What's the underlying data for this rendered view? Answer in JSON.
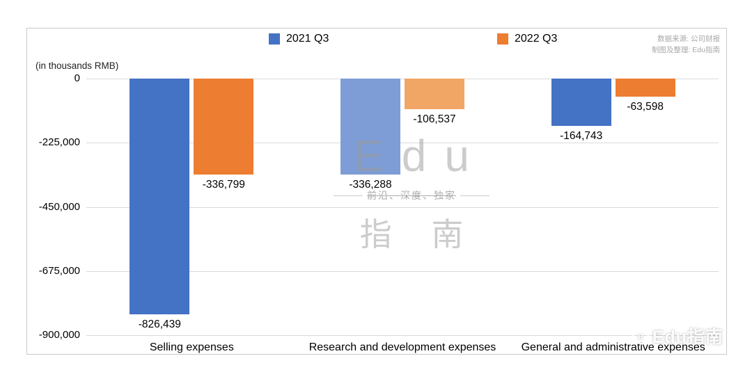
{
  "legend": {
    "items": [
      {
        "label": "2021 Q3",
        "color": "#4472C4"
      },
      {
        "label": "2022 Q3",
        "color": "#ED7D31"
      }
    ]
  },
  "source": {
    "line1": "数据来源: 公司财报",
    "line2": "制图及整理: Edu指南"
  },
  "chart_data": {
    "type": "bar",
    "title": "",
    "unit_label": "(in thousands RMB)",
    "categories": [
      "Selling expenses",
      "Research and development expenses",
      "General and administrative expenses"
    ],
    "series": [
      {
        "name": "2021 Q3",
        "color": "#4472C4",
        "values": [
          -826439,
          -336288,
          -164743
        ],
        "labels": [
          "-826,439",
          "-336,288",
          "-164,743"
        ]
      },
      {
        "name": "2022 Q3",
        "color": "#ED7D31",
        "values": [
          -336799,
          -106537,
          -63598
        ],
        "labels": [
          "-336,799",
          "-106,537",
          "-63,598"
        ]
      }
    ],
    "bar_colors": [
      [
        "#4472C4",
        "#ED7D31"
      ],
      [
        "#7E9DD6",
        "#F2A665"
      ],
      [
        "#4472C4",
        "#ED7D31"
      ]
    ],
    "ylim": [
      -900000,
      0
    ],
    "y_ticks": [
      0,
      -225000,
      -450000,
      -675000,
      -900000
    ],
    "y_tick_labels": [
      "0",
      "-225,000",
      "-450,000",
      "-675,000",
      "-900,000"
    ],
    "grid": true,
    "legend_position": "top"
  },
  "watermark": {
    "center_main": "Edu",
    "center_tagline": "前沿、深度、独家",
    "center_sub": "指 南",
    "corner": "Edu指南"
  }
}
